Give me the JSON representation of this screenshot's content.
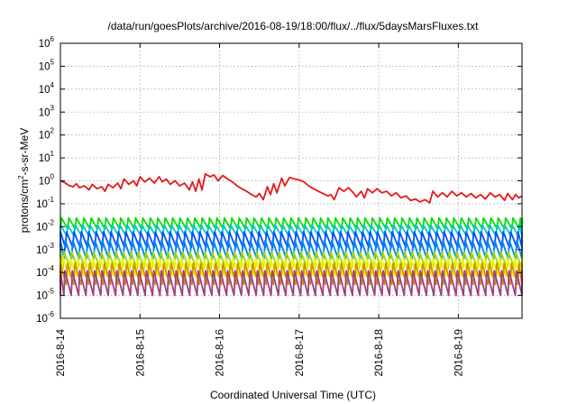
{
  "chart_data": {
    "type": "line",
    "title": "/data/run/goesPlots/archive/2016-08-19/18:00/flux/../flux/5daysMarsFluxes.txt",
    "xlabel": "Coordinated Universal Time (UTC)",
    "ylabel_parts": [
      "protons/cm",
      "2",
      "-s-sr-MeV"
    ],
    "xlim": [
      0,
      5.8
    ],
    "x_tick_positions": [
      0,
      1,
      2,
      3,
      4,
      5
    ],
    "x_tick_labels": [
      "2016-8-14",
      "2016-8-15",
      "2016-8-16",
      "2016-8-17",
      "2016-8-18",
      "2016-8-19"
    ],
    "y_scale": "log",
    "ylim": [
      1e-06,
      1000000.0
    ],
    "y_ticks": [
      {
        "base": "10",
        "exp": "-6",
        "value": 1e-06
      },
      {
        "base": "10",
        "exp": "-5",
        "value": 1e-05
      },
      {
        "base": "10",
        "exp": "-4",
        "value": 0.0001
      },
      {
        "base": "10",
        "exp": "-3",
        "value": 0.001
      },
      {
        "base": "10",
        "exp": "-2",
        "value": 0.01
      },
      {
        "base": "10",
        "exp": "-1",
        "value": 0.1
      },
      {
        "base": "10",
        "exp": "0",
        "value": 1
      },
      {
        "base": "10",
        "exp": "1",
        "value": 10
      },
      {
        "base": "10",
        "exp": "2",
        "value": 100
      },
      {
        "base": "10",
        "exp": "3",
        "value": 1000
      },
      {
        "base": "10",
        "exp": "4",
        "value": 10000
      },
      {
        "base": "10",
        "exp": "5",
        "value": 100000
      },
      {
        "base": "10",
        "exp": "6",
        "value": 1000000
      }
    ],
    "grid": true,
    "legend": "none",
    "series": [
      {
        "color": "#e41a1c",
        "points": [
          [
            0.0,
            1.0
          ],
          [
            0.05,
            0.85
          ],
          [
            0.1,
            0.65
          ],
          [
            0.16,
            0.55
          ],
          [
            0.2,
            0.75
          ],
          [
            0.24,
            0.5
          ],
          [
            0.3,
            0.6
          ],
          [
            0.36,
            0.4
          ],
          [
            0.4,
            0.7
          ],
          [
            0.46,
            0.45
          ],
          [
            0.52,
            0.55
          ],
          [
            0.56,
            0.35
          ],
          [
            0.6,
            0.7
          ],
          [
            0.66,
            0.5
          ],
          [
            0.72,
            0.8
          ],
          [
            0.76,
            0.45
          ],
          [
            0.8,
            1.2
          ],
          [
            0.86,
            0.7
          ],
          [
            0.92,
            1.0
          ],
          [
            0.96,
            0.6
          ],
          [
            1.0,
            1.5
          ],
          [
            1.06,
            0.9
          ],
          [
            1.12,
            1.3
          ],
          [
            1.18,
            0.8
          ],
          [
            1.24,
            1.5
          ],
          [
            1.28,
            0.9
          ],
          [
            1.33,
            1.2
          ],
          [
            1.38,
            0.7
          ],
          [
            1.44,
            1.0
          ],
          [
            1.5,
            0.6
          ],
          [
            1.56,
            0.8
          ],
          [
            1.62,
            0.4
          ],
          [
            1.66,
            0.9
          ],
          [
            1.7,
            0.35
          ],
          [
            1.74,
            1.2
          ],
          [
            1.78,
            0.4
          ],
          [
            1.82,
            2.0
          ],
          [
            1.88,
            1.5
          ],
          [
            1.93,
            1.8
          ],
          [
            1.98,
            1.0
          ],
          [
            2.04,
            1.7
          ],
          [
            2.1,
            1.2
          ],
          [
            2.16,
            0.9
          ],
          [
            2.22,
            0.6
          ],
          [
            2.28,
            0.45
          ],
          [
            2.34,
            0.35
          ],
          [
            2.4,
            0.25
          ],
          [
            2.46,
            0.2
          ],
          [
            2.5,
            0.28
          ],
          [
            2.55,
            0.15
          ],
          [
            2.6,
            0.55
          ],
          [
            2.64,
            0.25
          ],
          [
            2.68,
            0.75
          ],
          [
            2.72,
            0.3
          ],
          [
            2.78,
            1.3
          ],
          [
            2.82,
            0.6
          ],
          [
            2.88,
            1.4
          ],
          [
            2.94,
            1.2
          ],
          [
            3.0,
            1.1
          ],
          [
            3.06,
            0.9
          ],
          [
            3.12,
            0.6
          ],
          [
            3.18,
            0.45
          ],
          [
            3.24,
            0.35
          ],
          [
            3.3,
            0.28
          ],
          [
            3.36,
            0.22
          ],
          [
            3.4,
            0.25
          ],
          [
            3.44,
            0.15
          ],
          [
            3.5,
            0.5
          ],
          [
            3.56,
            0.35
          ],
          [
            3.62,
            0.5
          ],
          [
            3.68,
            0.3
          ],
          [
            3.72,
            0.2
          ],
          [
            3.78,
            0.35
          ],
          [
            3.82,
            0.18
          ],
          [
            3.86,
            0.45
          ],
          [
            3.92,
            0.3
          ],
          [
            3.98,
            0.45
          ],
          [
            4.04,
            0.3
          ],
          [
            4.1,
            0.35
          ],
          [
            4.16,
            0.22
          ],
          [
            4.22,
            0.3
          ],
          [
            4.28,
            0.18
          ],
          [
            4.34,
            0.22
          ],
          [
            4.4,
            0.14
          ],
          [
            4.46,
            0.16
          ],
          [
            4.52,
            0.12
          ],
          [
            4.58,
            0.15
          ],
          [
            4.64,
            0.11
          ],
          [
            4.68,
            0.35
          ],
          [
            4.74,
            0.2
          ],
          [
            4.8,
            0.3
          ],
          [
            4.86,
            0.2
          ],
          [
            4.92,
            0.35
          ],
          [
            4.98,
            0.22
          ],
          [
            5.04,
            0.3
          ],
          [
            5.1,
            0.2
          ],
          [
            5.16,
            0.28
          ],
          [
            5.22,
            0.18
          ],
          [
            5.28,
            0.25
          ],
          [
            5.34,
            0.16
          ],
          [
            5.4,
            0.3
          ],
          [
            5.46,
            0.2
          ],
          [
            5.52,
            0.25
          ],
          [
            5.58,
            0.14
          ],
          [
            5.62,
            0.28
          ],
          [
            5.68,
            0.15
          ],
          [
            5.72,
            0.25
          ],
          [
            5.76,
            0.18
          ],
          [
            5.8,
            0.22
          ]
        ]
      },
      {
        "color": "#00e000",
        "period": 0.093,
        "phase": 0.0,
        "high": 0.024,
        "low": 0.008
      },
      {
        "color": "#00c8c8",
        "period": 0.093,
        "phase": 0.015,
        "high": 0.012,
        "low": 0.004
      },
      {
        "color": "#0050ff",
        "period": 0.093,
        "phase": 0.03,
        "high": 0.006,
        "low": 0.0012
      },
      {
        "color": "#0080ff",
        "period": 0.093,
        "phase": 0.045,
        "high": 0.0025,
        "low": 0.0004
      },
      {
        "color": "#90e000",
        "period": 0.093,
        "phase": 0.06,
        "high": 0.0008,
        "low": 0.00015
      },
      {
        "color": "#fff000",
        "period": 0.093,
        "phase": 0.075,
        "high": 0.0004,
        "low": 7e-05
      },
      {
        "color": "#d09000",
        "period": 0.093,
        "phase": 0.02,
        "high": 0.00025,
        "low": 3e-05
      },
      {
        "color": "#a04080",
        "period": 0.093,
        "phase": 0.05,
        "high": 0.00012,
        "low": 1e-05
      }
    ]
  }
}
